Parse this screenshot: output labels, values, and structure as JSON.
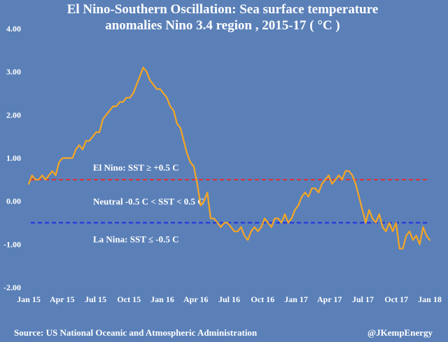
{
  "chart_data": {
    "type": "line",
    "title": "El Nino-Southern Oscillation: Sea surface temperature",
    "subtitle": "anomalies Nino 3.4 region , 2015-17 ( °C )",
    "xlabel": "",
    "ylabel": "",
    "ylim": [
      -2.0,
      4.0
    ],
    "yticks": [
      "4.00",
      "3.00",
      "2.00",
      "1.00",
      "0.00",
      "-1.00",
      "-2.00"
    ],
    "ytick_values": [
      4,
      3,
      2,
      1,
      0,
      -1,
      -2
    ],
    "xticks": [
      "Jan 15",
      "Apr 15",
      "Jul 15",
      "Oct 15",
      "Jan 16",
      "Apr 16",
      "Jul 16",
      "Oct 16",
      "Jan 17",
      "Apr 17",
      "Jul 17",
      "Oct 17",
      "Jan 18"
    ],
    "grid": false,
    "legend": "none",
    "series": [
      {
        "color": "#f5a623",
        "values": [
          0.4,
          0.6,
          0.5,
          0.5,
          0.6,
          0.5,
          0.6,
          0.7,
          0.6,
          0.9,
          1.0,
          1.0,
          1.0,
          1.0,
          1.2,
          1.3,
          1.2,
          1.4,
          1.4,
          1.5,
          1.6,
          1.6,
          1.9,
          2.0,
          2.1,
          2.2,
          2.2,
          2.3,
          2.3,
          2.4,
          2.4,
          2.5,
          2.7,
          2.9,
          3.1,
          3.0,
          2.8,
          2.7,
          2.6,
          2.6,
          2.5,
          2.4,
          2.2,
          2.1,
          1.8,
          1.7,
          1.4,
          1.1,
          0.9,
          0.8,
          0.4,
          -0.1,
          0.0,
          0.2,
          -0.4,
          -0.4,
          -0.5,
          -0.6,
          -0.5,
          -0.5,
          -0.6,
          -0.7,
          -0.7,
          -0.6,
          -0.8,
          -0.9,
          -0.7,
          -0.6,
          -0.7,
          -0.6,
          -0.4,
          -0.5,
          -0.6,
          -0.4,
          -0.4,
          -0.5,
          -0.3,
          -0.5,
          -0.4,
          -0.2,
          -0.1,
          0.1,
          0.2,
          0.1,
          0.3,
          0.3,
          0.2,
          0.4,
          0.5,
          0.6,
          0.4,
          0.5,
          0.6,
          0.5,
          0.7,
          0.7,
          0.6,
          0.4,
          0.1,
          -0.2,
          -0.5,
          -0.2,
          -0.4,
          -0.5,
          -0.3,
          -0.6,
          -0.7,
          -0.5,
          -0.7,
          -0.5,
          -1.1,
          -1.1,
          -0.8,
          -0.7,
          -0.9,
          -0.8,
          -1.0,
          -0.6,
          -0.8,
          -0.9
        ]
      }
    ],
    "reference_lines": [
      {
        "name": "El Nino threshold",
        "y": 0.5,
        "color": "#e0302f",
        "label": "El Nino: SST ≥  +0.5 C"
      },
      {
        "name": "La Nina threshold",
        "y": -0.5,
        "color": "#1f2fe0",
        "label": "La Nina:  SST ≤  -0.5 C"
      }
    ],
    "annotations": [
      {
        "text": "Neutral  -0.5 C < SST < 0.5 C",
        "anchor_y": 0.0
      }
    ]
  },
  "footer": {
    "source": "Source: US National Oceanic and Atmospheric Administration",
    "credit": "@JKempEnergy"
  },
  "colors": {
    "background": "#5b80b8",
    "text": "#ffffff",
    "line": "#f5a623"
  }
}
